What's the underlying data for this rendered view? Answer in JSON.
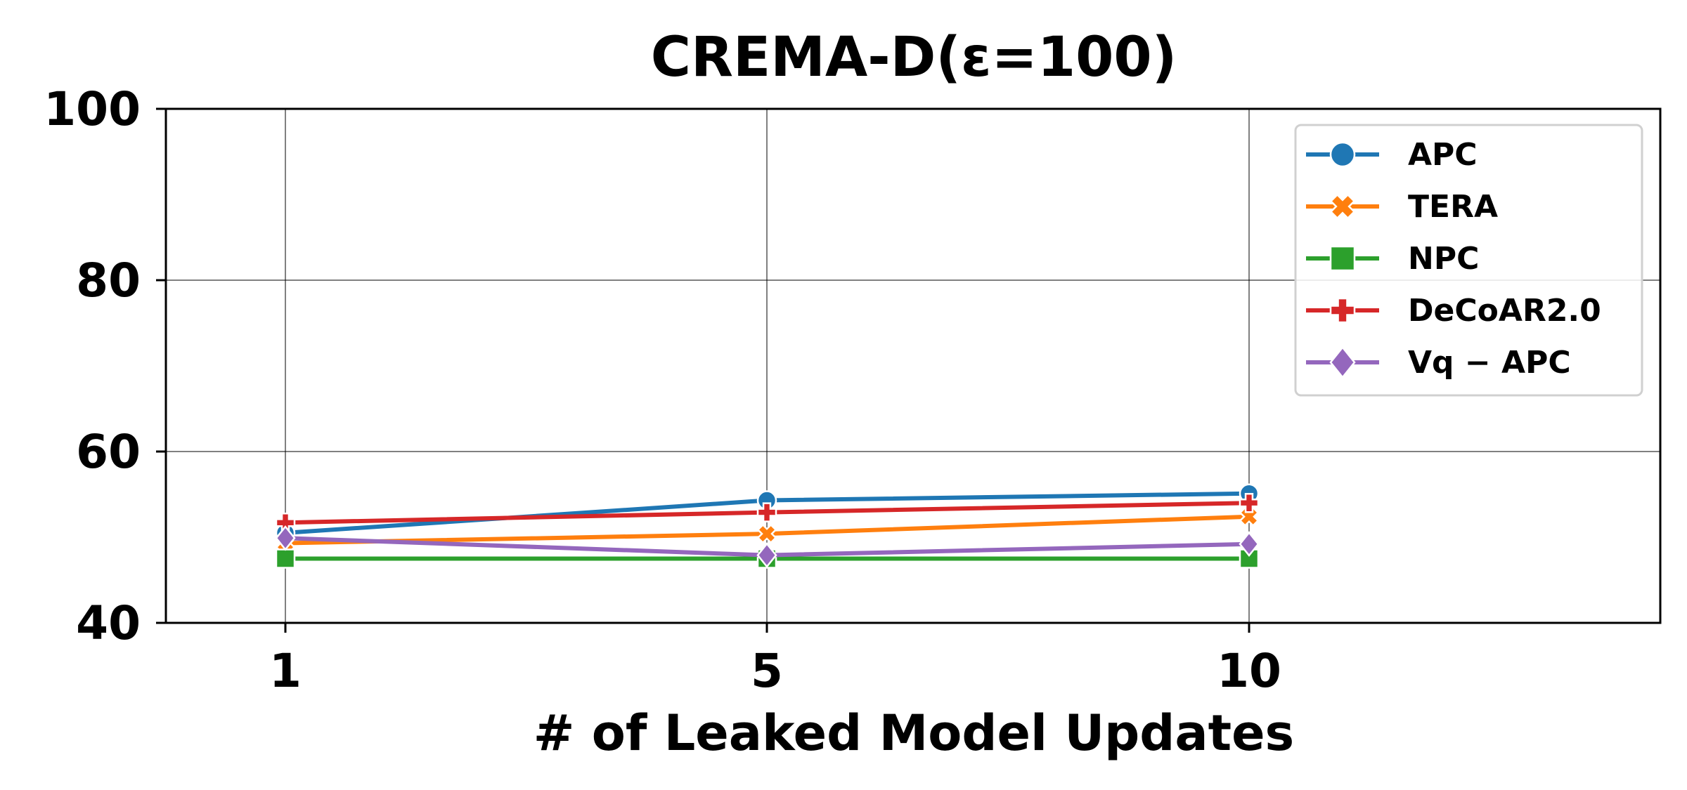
{
  "chart_data": {
    "type": "line",
    "title": "CREMA-D(ε=100)",
    "xlabel": "# of Leaked Model Updates",
    "ylabel": "",
    "categories": [
      "1",
      "5",
      "10"
    ],
    "ylim": [
      40,
      100
    ],
    "yticks": [
      "40",
      "60",
      "80",
      "100"
    ],
    "grid": true,
    "legend_position": "top-right",
    "series": [
      {
        "name": "APC",
        "color": "#1f77b4",
        "marker": "circle",
        "values": [
          50.5,
          54.3,
          55.1
        ]
      },
      {
        "name": "TERA",
        "color": "#ff7f0e",
        "marker": "x-filled",
        "values": [
          49.3,
          50.4,
          52.4
        ]
      },
      {
        "name": "NPC",
        "color": "#2ca02c",
        "marker": "square",
        "values": [
          47.5,
          47.5,
          47.5
        ]
      },
      {
        "name": "DeCoAR2.0",
        "color": "#d62728",
        "marker": "plus-filled",
        "values": [
          51.7,
          52.9,
          54.0
        ]
      },
      {
        "name": "Vq − APC",
        "color": "#9467bd",
        "marker": "diamond",
        "values": [
          49.9,
          47.9,
          49.2
        ]
      }
    ]
  }
}
